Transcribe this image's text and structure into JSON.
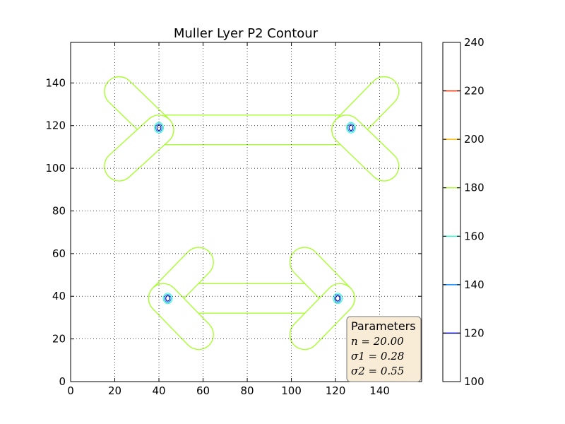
{
  "chart_data": {
    "type": "contour",
    "title": "Muller Lyer P2 Contour",
    "xlabel": "",
    "ylabel": "",
    "xlim": [
      0,
      159
    ],
    "ylim": [
      0,
      159
    ],
    "x_ticks": [
      0,
      20,
      40,
      60,
      80,
      100,
      120,
      140
    ],
    "y_ticks": [
      0,
      20,
      40,
      60,
      80,
      100,
      120,
      140
    ],
    "grid": true,
    "levels": [
      {
        "value": 120,
        "color": "#0000aa"
      },
      {
        "value": 140,
        "color": "#0088ff"
      },
      {
        "value": 160,
        "color": "#33ffcc"
      },
      {
        "value": 180,
        "color": "#aaff33"
      },
      {
        "value": 200,
        "color": "#ffbb00"
      },
      {
        "value": 220,
        "color": "#ff3300"
      },
      {
        "value": 240,
        "color": "#800000"
      }
    ],
    "colorbar": {
      "min": 100,
      "max": 240,
      "ticks": [
        100,
        120,
        140,
        160,
        180,
        200,
        220,
        240
      ]
    },
    "figures": [
      {
        "name": "upper figure",
        "shaft": {
          "x": [
            40,
            125
          ],
          "y": 118
        },
        "left_fins": [
          [
            40,
            118,
            22,
            136
          ],
          [
            40,
            118,
            22,
            101
          ]
        ],
        "right_fins": [
          [
            125,
            118,
            142,
            136
          ],
          [
            125,
            118,
            142,
            101
          ]
        ],
        "minima": [
          [
            40,
            119
          ],
          [
            127,
            119
          ]
        ]
      },
      {
        "name": "lower figure",
        "shaft": {
          "x": [
            43,
            122
          ],
          "y": 39
        },
        "left_fins": [
          [
            42,
            39,
            58,
            56
          ],
          [
            42,
            39,
            58,
            22
          ]
        ],
        "right_fins": [
          [
            122,
            39,
            106,
            56
          ],
          [
            122,
            39,
            106,
            22
          ]
        ],
        "minima": [
          [
            44,
            39
          ],
          [
            121,
            39
          ]
        ]
      }
    ],
    "parameters": {
      "title": "Parameters",
      "lines": [
        "n = 20.00",
        "σ1 = 0.28",
        "σ2 = 0.55"
      ]
    }
  }
}
